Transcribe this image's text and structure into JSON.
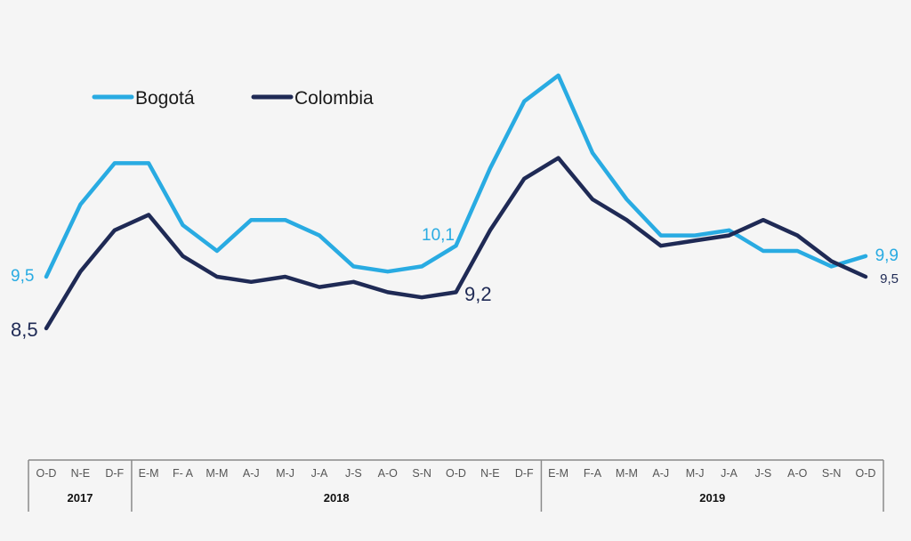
{
  "chart_data": {
    "type": "line",
    "title": "",
    "xlabel": "",
    "ylabel": "",
    "grid": false,
    "legend_position": "top-left",
    "ylim": [
      7.5,
      14.2
    ],
    "categories": [
      "O-D",
      "N-E",
      "D-F",
      "E-M",
      "F- A",
      "M-M",
      "A-J",
      "M-J",
      "J-A",
      "J-S",
      "A-O",
      "S-N",
      "O-D",
      "N-E",
      "D-F",
      "E-M",
      "F-A",
      "M-M",
      "A-J",
      "M-J",
      "J-A",
      "J-S",
      "A-O",
      "S-N",
      "O-D"
    ],
    "year_groups": [
      {
        "label": "2017",
        "count": 3
      },
      {
        "label": "2018",
        "count": 12
      },
      {
        "label": "2019",
        "count": 10
      }
    ],
    "series": [
      {
        "name": "Bogotá",
        "color": "#29abe2",
        "values": [
          9.5,
          10.9,
          11.7,
          11.7,
          10.5,
          10.0,
          10.6,
          10.6,
          10.3,
          9.7,
          9.6,
          9.7,
          10.1,
          11.6,
          12.9,
          13.4,
          11.9,
          11.0,
          10.3,
          10.3,
          10.4,
          10.0,
          10.0,
          9.7,
          9.9
        ],
        "annotations": [
          {
            "index": 0,
            "text": "9,5"
          },
          {
            "index": 12,
            "text": "10,1"
          },
          {
            "index": 24,
            "text": "9,9"
          }
        ]
      },
      {
        "name": "Colombia",
        "color": "#1f2a55",
        "values": [
          8.5,
          9.6,
          10.4,
          10.7,
          9.9,
          9.5,
          9.4,
          9.5,
          9.3,
          9.4,
          9.2,
          9.1,
          9.2,
          10.4,
          11.4,
          11.8,
          11.0,
          10.6,
          10.1,
          10.2,
          10.3,
          10.6,
          10.3,
          9.8,
          9.5
        ],
        "annotations": [
          {
            "index": 0,
            "text": "8,5"
          },
          {
            "index": 12,
            "text": "9,2"
          },
          {
            "index": 24,
            "text": "9,5"
          }
        ]
      }
    ]
  }
}
